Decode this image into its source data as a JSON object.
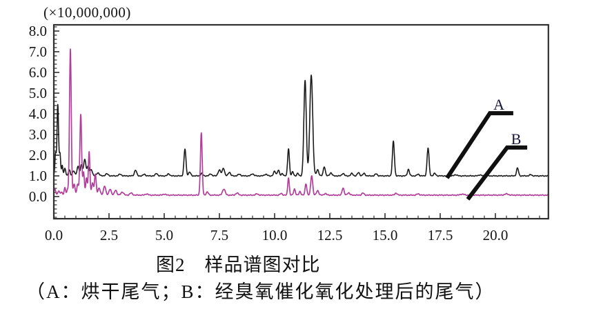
{
  "figure": {
    "scale_label": "(×10,000,000)",
    "caption_line1": "图2　样品谱图对比",
    "caption_line2": "（A：烘干尾气；B：经臭氧催化氧化处理后的尾气）"
  },
  "chart_data": {
    "type": "line",
    "title": "图2　样品谱图对比",
    "subtitle": "（A：烘干尾气；B：经臭氧催化氧化处理后的尾气）",
    "xlabel": "",
    "ylabel": "(×10,000,000)",
    "xlim": [
      0,
      22.4
    ],
    "ylim": [
      -1.07,
      8.3
    ],
    "grid": false,
    "x_minor_step": 0.5,
    "y_minor_step": 0.2,
    "xticks": {
      "values": [
        0,
        2.5,
        5,
        7.5,
        10,
        12.5,
        15,
        17.5,
        20
      ],
      "labels": [
        "0.0",
        "2.5",
        "5.0",
        "7.5",
        "10.0",
        "12.5",
        "15.0",
        "17.5",
        "20.0"
      ]
    },
    "yticks": {
      "values": [
        8,
        7,
        6,
        5,
        4,
        3,
        2,
        1,
        0
      ],
      "labels": [
        "8.0",
        "7.0",
        "6.0",
        "5.0",
        "4.0",
        "3.0",
        "2.0",
        "1.0",
        "0.0"
      ]
    },
    "frame_color": "#2f2f2f",
    "series": [
      {
        "name": "A",
        "description": "烘干尾气",
        "color": "#1a1a1a",
        "stroke_width": 1.6,
        "baseline": 1.0,
        "peaks": [
          [
            0.08,
            1.1,
            0.03
          ],
          [
            0.18,
            3.45,
            0.035
          ],
          [
            0.28,
            1.05,
            0.03
          ],
          [
            0.38,
            0.5,
            0.03
          ],
          [
            0.5,
            0.35,
            0.04
          ],
          [
            0.7,
            0.3,
            0.04
          ],
          [
            0.9,
            0.25,
            0.05
          ],
          [
            1.1,
            0.45,
            0.05
          ],
          [
            1.25,
            0.55,
            0.04
          ],
          [
            1.4,
            0.8,
            0.05
          ],
          [
            1.55,
            0.45,
            0.05
          ],
          [
            1.7,
            0.3,
            0.05
          ],
          [
            2.0,
            0.15,
            0.06
          ],
          [
            2.4,
            0.1,
            0.06
          ],
          [
            3.0,
            0.08,
            0.06
          ],
          [
            3.7,
            0.28,
            0.05
          ],
          [
            4.1,
            0.08,
            0.05
          ],
          [
            4.65,
            0.12,
            0.05
          ],
          [
            5.2,
            0.1,
            0.05
          ],
          [
            5.94,
            1.3,
            0.045
          ],
          [
            6.15,
            0.18,
            0.05
          ],
          [
            6.7,
            0.12,
            0.05
          ],
          [
            7.1,
            0.1,
            0.05
          ],
          [
            7.5,
            0.28,
            0.06
          ],
          [
            7.68,
            0.38,
            0.05
          ],
          [
            7.95,
            0.18,
            0.05
          ],
          [
            8.4,
            0.08,
            0.06
          ],
          [
            9.0,
            0.1,
            0.06
          ],
          [
            9.6,
            0.08,
            0.06
          ],
          [
            10.0,
            0.22,
            0.05
          ],
          [
            10.17,
            0.28,
            0.045
          ],
          [
            10.35,
            0.12,
            0.04
          ],
          [
            10.63,
            1.33,
            0.04
          ],
          [
            10.82,
            0.2,
            0.04
          ],
          [
            11.05,
            0.12,
            0.04
          ],
          [
            11.38,
            4.6,
            0.055
          ],
          [
            11.66,
            4.88,
            0.065
          ],
          [
            11.95,
            0.3,
            0.05
          ],
          [
            12.25,
            0.45,
            0.045
          ],
          [
            12.55,
            0.15,
            0.05
          ],
          [
            13.1,
            0.12,
            0.05
          ],
          [
            13.5,
            0.12,
            0.05
          ],
          [
            13.8,
            0.16,
            0.05
          ],
          [
            14.05,
            0.12,
            0.05
          ],
          [
            14.6,
            0.1,
            0.05
          ],
          [
            15.38,
            1.67,
            0.045
          ],
          [
            16.06,
            0.32,
            0.045
          ],
          [
            16.5,
            0.08,
            0.05
          ],
          [
            16.95,
            1.35,
            0.045
          ],
          [
            17.25,
            0.12,
            0.05
          ],
          [
            18.2,
            0.06,
            0.06
          ],
          [
            19.3,
            0.05,
            0.06
          ],
          [
            21.0,
            0.38,
            0.045
          ],
          [
            21.6,
            0.06,
            0.05
          ]
        ]
      },
      {
        "name": "B",
        "description": "经臭氧催化氧化处理后的尾气",
        "color": "#b13e9b",
        "stroke_width": 1.7,
        "baseline": 0.07,
        "peaks": [
          [
            0.05,
            0.3,
            0.04
          ],
          [
            0.22,
            0.2,
            0.04
          ],
          [
            0.35,
            0.15,
            0.04
          ],
          [
            0.5,
            0.35,
            0.035
          ],
          [
            0.62,
            0.25,
            0.035
          ],
          [
            0.75,
            7.05,
            0.04
          ],
          [
            0.92,
            0.55,
            0.04
          ],
          [
            1.08,
            0.5,
            0.04
          ],
          [
            1.22,
            3.9,
            0.04
          ],
          [
            1.35,
            1.1,
            0.035
          ],
          [
            1.48,
            0.85,
            0.035
          ],
          [
            1.6,
            2.1,
            0.035
          ],
          [
            1.75,
            0.6,
            0.04
          ],
          [
            1.88,
            1.0,
            0.04
          ],
          [
            2.05,
            0.35,
            0.05
          ],
          [
            2.3,
            0.45,
            0.05
          ],
          [
            2.55,
            0.3,
            0.05
          ],
          [
            2.8,
            0.25,
            0.05
          ],
          [
            3.1,
            0.15,
            0.06
          ],
          [
            3.5,
            0.1,
            0.06
          ],
          [
            4.2,
            0.06,
            0.06
          ],
          [
            5.0,
            0.05,
            0.06
          ],
          [
            6.68,
            3.0,
            0.04
          ],
          [
            6.95,
            0.15,
            0.05
          ],
          [
            7.7,
            0.3,
            0.06
          ],
          [
            8.3,
            0.1,
            0.06
          ],
          [
            9.2,
            0.06,
            0.06
          ],
          [
            10.3,
            0.08,
            0.05
          ],
          [
            10.63,
            0.85,
            0.035
          ],
          [
            10.9,
            0.3,
            0.04
          ],
          [
            11.15,
            0.18,
            0.04
          ],
          [
            11.42,
            0.55,
            0.04
          ],
          [
            11.68,
            0.95,
            0.045
          ],
          [
            11.95,
            0.22,
            0.05
          ],
          [
            12.3,
            0.08,
            0.05
          ],
          [
            13.1,
            0.35,
            0.045
          ],
          [
            13.35,
            0.12,
            0.05
          ],
          [
            14.0,
            0.1,
            0.05
          ],
          [
            15.5,
            0.1,
            0.05
          ],
          [
            16.5,
            0.06,
            0.06
          ],
          [
            18.5,
            0.05,
            0.08
          ],
          [
            20.5,
            0.06,
            0.08
          ]
        ]
      }
    ],
    "annotations": [
      {
        "label": "A",
        "line_t_v": [
          [
            17.81,
            0.9
          ],
          [
            19.75,
            4.03
          ],
          [
            20.81,
            4.03
          ]
        ],
        "label_t": 20.16,
        "label_v": 4.2,
        "line_color": "#101010",
        "line_width": 6
      },
      {
        "label": "B",
        "line_t_v": [
          [
            18.75,
            -0.13
          ],
          [
            20.53,
            2.37
          ],
          [
            21.44,
            2.37
          ]
        ],
        "label_t": 20.94,
        "label_v": 2.53,
        "line_color": "#101010",
        "line_width": 6
      }
    ]
  }
}
